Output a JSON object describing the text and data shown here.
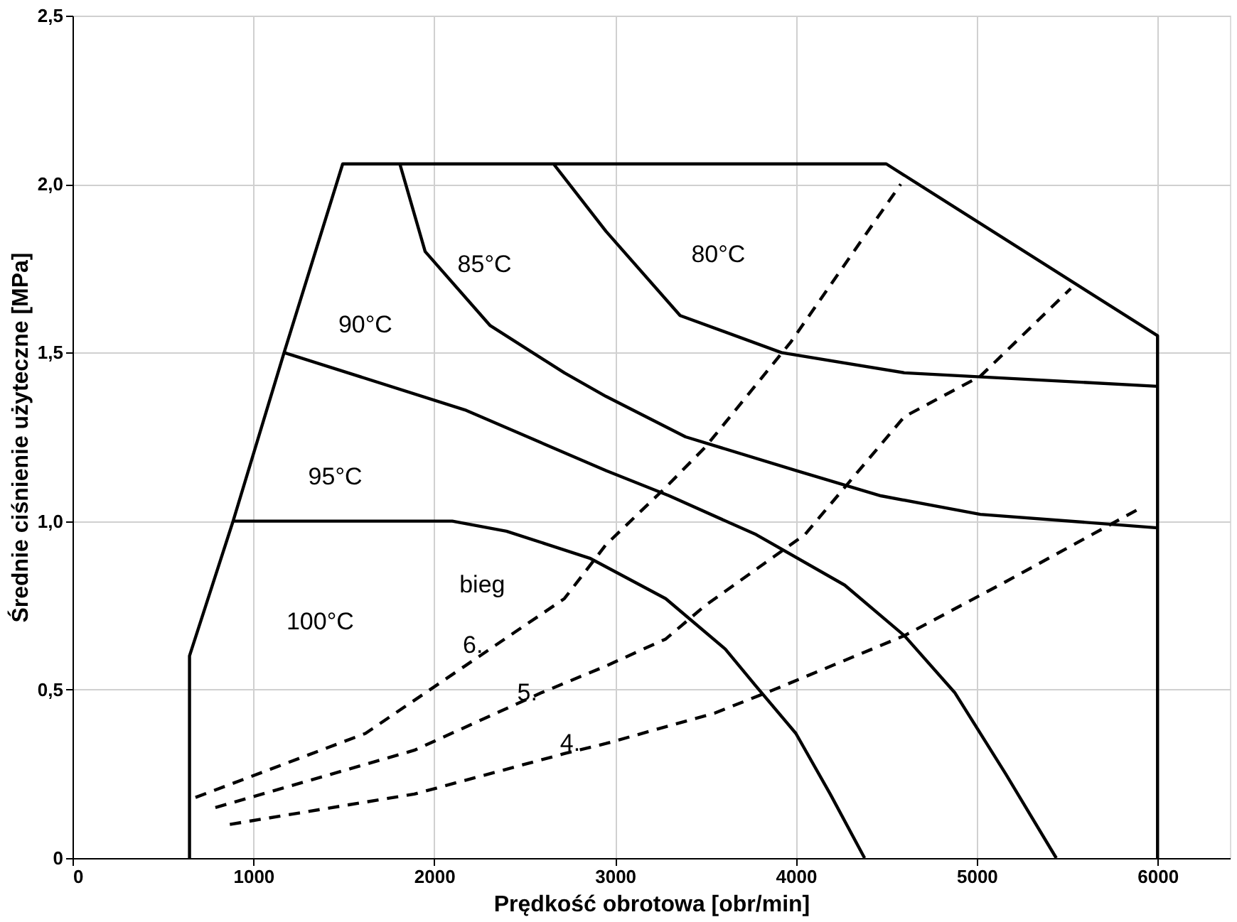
{
  "chart_data": {
    "type": "line",
    "xlabel": "Prędkość obrotowa [obr/min]",
    "ylabel": "Średnie ciśnienie  użyteczne  [MPa]",
    "xlim": [
      0,
      6400
    ],
    "ylim": [
      0,
      2.5
    ],
    "xticks": [
      0,
      {
        "value": 1000,
        "label": "1000"
      },
      {
        "value": 2000,
        "label": "2000"
      },
      {
        "value": 3000,
        "label": "3000"
      },
      {
        "value": 4000,
        "label": "4000"
      },
      {
        "value": 5000,
        "label": "5000"
      },
      {
        "value": 6000,
        "label": "6000"
      }
    ],
    "yticks": [
      0,
      {
        "value": 0.5,
        "label": "0,5"
      },
      {
        "value": 1.0,
        "label": "1,0"
      },
      {
        "value": 1.5,
        "label": "1,5"
      },
      {
        "value": 2.0,
        "label": "2,0"
      },
      {
        "value": 2.5,
        "label": "2,5"
      }
    ],
    "grid": true,
    "marker": "none",
    "series": [
      {
        "color": "#000000",
        "line_style": "solid",
        "x": [
          647,
          647,
          888,
          1170,
          1494,
          4500,
          6000,
          6000
        ],
        "values": [
          0,
          0.6,
          1.0,
          1.5,
          2.06,
          2.06,
          1.55,
          0
        ]
      },
      {
        "color": "#000000",
        "line_style": "solid",
        "x": [
          888,
          2100,
          2400,
          2860,
          3280,
          3610,
          3780,
          4000,
          4190,
          4380
        ],
        "values": [
          1.0,
          1.0,
          0.97,
          0.89,
          0.77,
          0.62,
          0.51,
          0.37,
          0.19,
          0
        ]
      },
      {
        "color": "#000000",
        "line_style": "solid",
        "x": [
          1170,
          2170,
          2950,
          3300,
          3780,
          4270,
          4600,
          4880,
          5160,
          5440
        ],
        "values": [
          1.5,
          1.33,
          1.15,
          1.075,
          0.96,
          0.81,
          0.66,
          0.49,
          0.25,
          0
        ]
      },
      {
        "color": "#000000",
        "line_style": "solid",
        "x": [
          1810,
          1950,
          2310,
          2720,
          2950,
          3390,
          4000,
          4470,
          5020,
          6000
        ],
        "values": [
          2.06,
          1.8,
          1.58,
          1.44,
          1.37,
          1.25,
          1.15,
          1.075,
          1.02,
          0.98
        ]
      },
      {
        "color": "#000000",
        "line_style": "solid",
        "x": [
          2660,
          2950,
          3360,
          3920,
          4600,
          6000
        ],
        "values": [
          2.06,
          1.86,
          1.61,
          1.5,
          1.44,
          1.4
        ]
      },
      {
        "color": "#000000",
        "line_style": "dashed",
        "x": [
          680,
          1620,
          2170,
          2720,
          2950,
          3280,
          3500,
          3970,
          4580
        ],
        "values": [
          0.18,
          0.37,
          0.57,
          0.77,
          0.93,
          1.1,
          1.22,
          1.53,
          2.0
        ]
      },
      {
        "color": "#000000",
        "line_style": "dashed",
        "x": [
          790,
          1890,
          2590,
          2950,
          3280,
          3500,
          4050,
          4600,
          5020,
          5520
        ],
        "values": [
          0.15,
          0.32,
          0.49,
          0.57,
          0.65,
          0.75,
          0.96,
          1.31,
          1.43,
          1.69
        ]
      },
      {
        "color": "#000000",
        "line_style": "dashed",
        "x": [
          870,
          1890,
          2720,
          2950,
          3550,
          3880,
          4600,
          5160,
          5910
        ],
        "values": [
          0.1,
          0.19,
          0.31,
          0.34,
          0.43,
          0.5,
          0.66,
          0.82,
          1.04
        ]
      }
    ],
    "annotations": [
      "100°C",
      "95°C",
      "90°C",
      "85°C",
      "80°C",
      "bieg",
      "6.",
      "5.",
      "4."
    ]
  }
}
